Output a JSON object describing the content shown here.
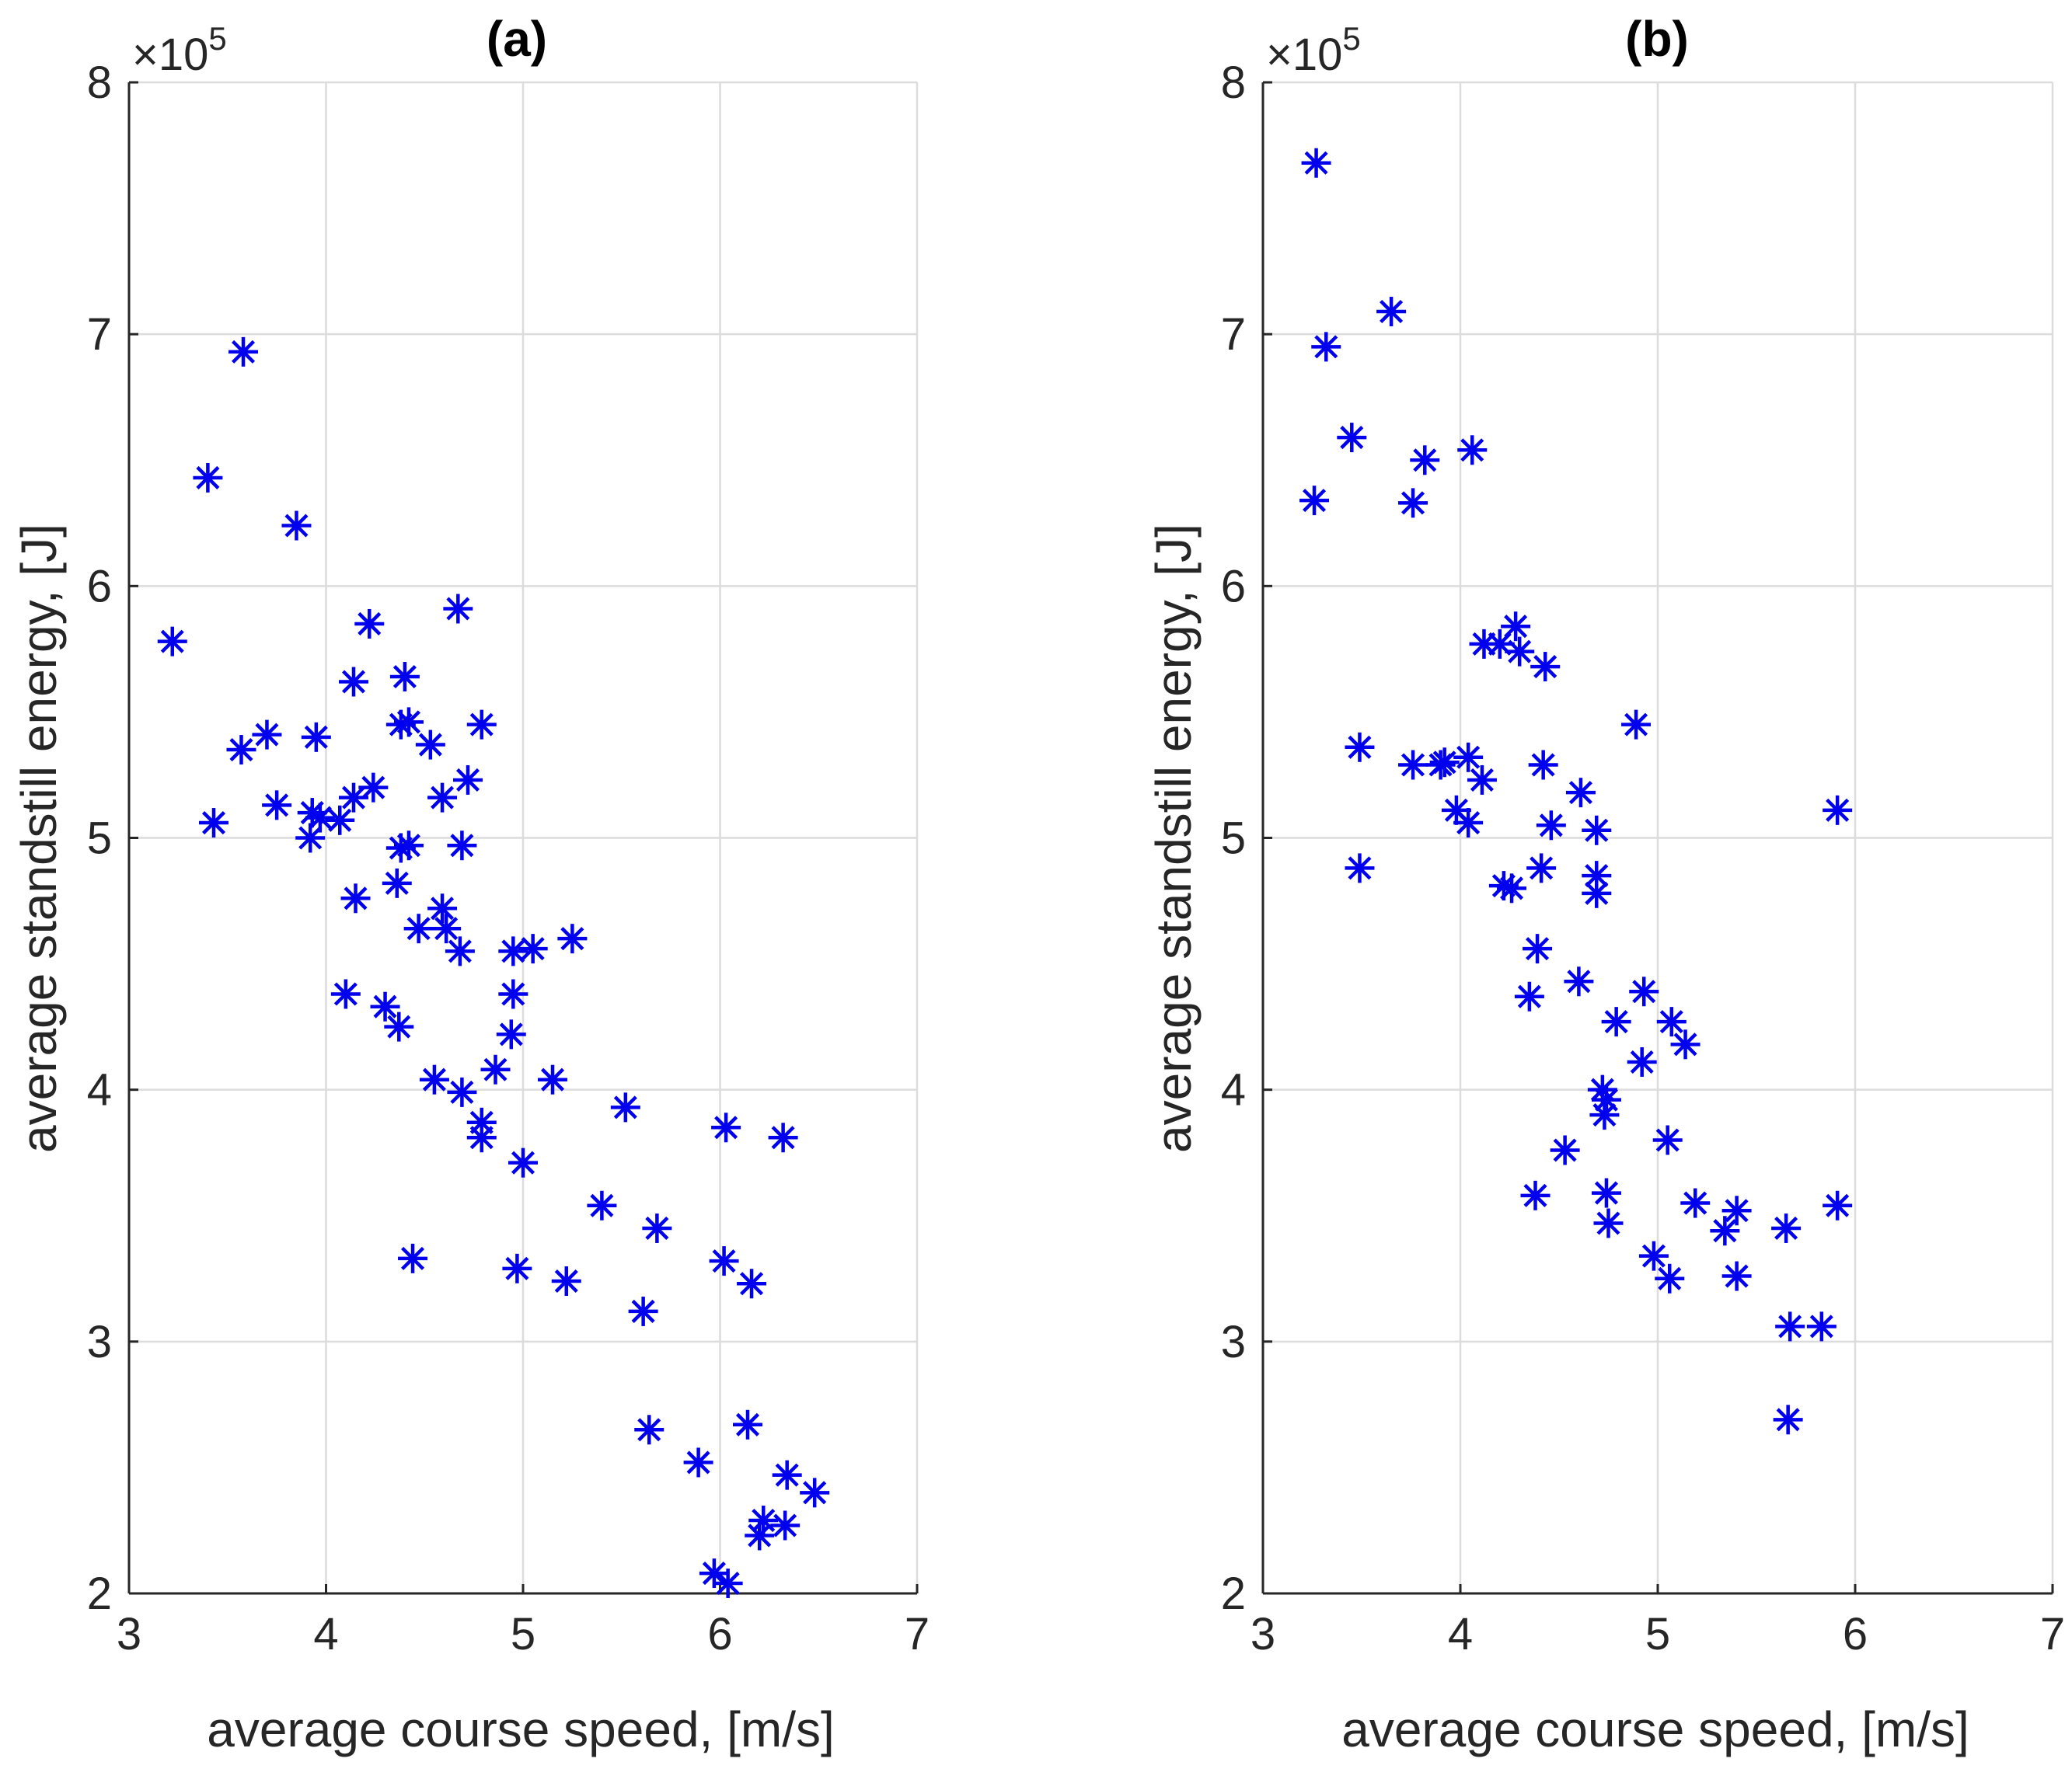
{
  "chart_data": [
    {
      "type": "scatter",
      "title": "(a)",
      "xlabel": "average course speed, [m/s]",
      "ylabel": "average standstill energy, [J]",
      "xlim": [
        3,
        7
      ],
      "ylim": [
        2,
        8
      ],
      "y_multiplier": "×10",
      "y_multiplier_exp": "5",
      "x_ticks": [
        "3",
        "4",
        "5",
        "6",
        "7"
      ],
      "y_ticks": [
        "2",
        "3",
        "4",
        "5",
        "6",
        "7",
        "8"
      ],
      "marker_color": "#0000ee",
      "grid": true,
      "x": [
        3.58,
        3.4,
        3.85,
        3.22,
        4.22,
        4.67,
        4.14,
        4.4,
        4.38,
        4.42,
        4.53,
        4.79,
        3.7,
        3.57,
        3.75,
        3.43,
        3.95,
        3.93,
        3.97,
        4.07,
        4.14,
        4.24,
        4.59,
        4.72,
        4.38,
        4.42,
        4.69,
        3.92,
        4.15,
        4.36,
        4.47,
        4.59,
        4.61,
        4.68,
        4.95,
        5.05,
        5.25,
        4.95,
        4.1,
        4.3,
        4.37,
        4.94,
        4.55,
        4.69,
        4.86,
        5.15,
        4.79,
        4.79,
        5.0,
        5.52,
        6.03,
        6.32,
        4.44,
        4.97,
        5.22,
        5.4,
        5.68,
        5.61,
        6.02,
        6.16,
        5.64,
        5.89,
        6.14,
        6.34,
        6.48,
        6.22,
        6.33,
        6.2,
        5.97,
        6.04
      ],
      "y": [
        6.93,
        6.43,
        6.24,
        5.78,
        5.85,
        5.91,
        5.62,
        5.64,
        5.45,
        5.46,
        5.37,
        5.45,
        5.41,
        5.35,
        5.13,
        5.06,
        5.4,
        5.1,
        5.08,
        5.07,
        5.16,
        5.2,
        5.16,
        5.23,
        4.96,
        4.97,
        4.97,
        5.0,
        4.76,
        4.82,
        4.64,
        4.72,
        4.64,
        4.55,
        4.55,
        4.56,
        4.6,
        4.38,
        4.38,
        4.33,
        4.25,
        4.22,
        4.04,
        3.99,
        4.08,
        4.04,
        3.87,
        3.81,
        3.71,
        3.93,
        3.85,
        3.81,
        3.33,
        3.29,
        3.24,
        3.54,
        3.45,
        3.12,
        3.32,
        3.23,
        2.65,
        2.52,
        2.67,
        2.47,
        2.4,
        2.29,
        2.27,
        2.23,
        2.08,
        2.04
      ]
    },
    {
      "type": "scatter",
      "title": "(b)",
      "xlabel": "average course speed, [m/s]",
      "ylabel": "average standstill energy, [J]",
      "xlim": [
        3,
        7
      ],
      "ylim": [
        2,
        8
      ],
      "y_multiplier": "×10",
      "y_multiplier_exp": "5",
      "x_ticks": [
        "3",
        "4",
        "5",
        "6",
        "7"
      ],
      "y_ticks": [
        "2",
        "3",
        "4",
        "5",
        "6",
        "7",
        "8"
      ],
      "marker_color": "#0000ee",
      "grid": true,
      "x": [
        3.27,
        3.65,
        3.32,
        3.45,
        4.06,
        3.82,
        3.26,
        3.76,
        4.28,
        4.12,
        4.2,
        4.3,
        4.43,
        4.89,
        3.49,
        3.76,
        3.9,
        3.92,
        4.04,
        4.11,
        3.98,
        4.04,
        4.42,
        4.61,
        4.69,
        5.91,
        3.49,
        4.41,
        4.46,
        4.69,
        4.69,
        4.22,
        4.26,
        4.39,
        4.35,
        4.6,
        4.93,
        5.07,
        5.14,
        4.79,
        4.72,
        4.74,
        4.92,
        4.73,
        5.05,
        4.53,
        4.38,
        4.74,
        4.75,
        5.19,
        5.4,
        5.34,
        5.65,
        5.91,
        4.98,
        5.06,
        5.4,
        5.67,
        5.83,
        5.66
      ],
      "y": [
        7.68,
        7.09,
        6.95,
        6.59,
        6.54,
        6.5,
        6.34,
        6.33,
        5.84,
        5.77,
        5.77,
        5.74,
        5.68,
        5.45,
        5.36,
        5.29,
        5.29,
        5.3,
        5.32,
        5.23,
        5.11,
        5.06,
        5.29,
        5.18,
        5.03,
        5.11,
        4.88,
        4.88,
        5.05,
        4.85,
        4.78,
        4.81,
        4.8,
        4.56,
        4.37,
        4.43,
        4.39,
        4.27,
        4.18,
        4.27,
        4.0,
        3.96,
        4.11,
        3.9,
        3.8,
        3.76,
        3.58,
        3.59,
        3.47,
        3.55,
        3.52,
        3.44,
        3.45,
        3.54,
        3.34,
        3.25,
        3.26,
        3.06,
        3.06,
        2.69
      ]
    }
  ]
}
